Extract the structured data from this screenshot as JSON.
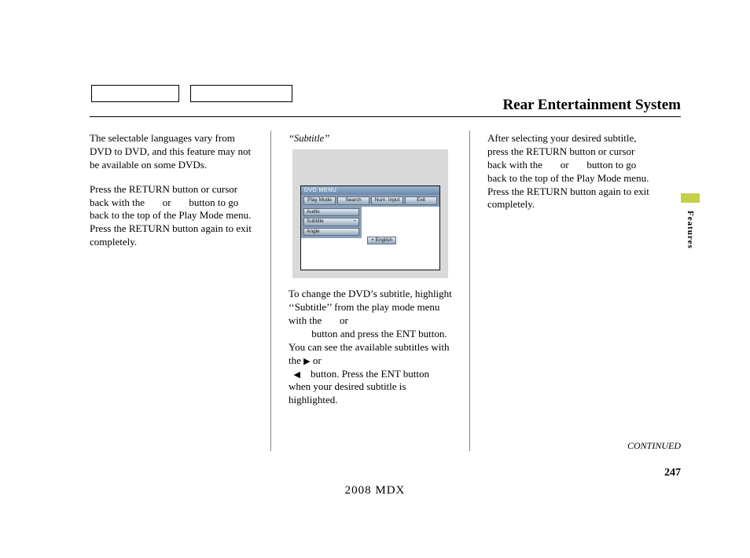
{
  "header": {
    "title": "Rear Entertainment System"
  },
  "col1": {
    "p1": "The selectable languages vary from DVD to DVD, and this feature may not be available on some DVDs.",
    "p2a": "Press the RETURN button or cursor back with the ",
    "p2b": " or ",
    "p2c": " button to go back to the top of the Play Mode menu. Press the RETURN button again to exit completely."
  },
  "col2": {
    "label": "‘‘Subtitle’’",
    "p1a": "To change the DVD’s subtitle, highlight ‘‘Subtitle’’ from the play mode menu with the ",
    "p1b": " or",
    "p1c": " button and press the ENT button. You can see the available subtitles with the ",
    "p1d": " or",
    "p1e": " button. Press the ENT button when your desired subtitle is highlighted.",
    "tri_right": "▶",
    "tri_left": "◀",
    "dvd": {
      "menu_label": "DVD MENU",
      "row1": [
        "Play Mode",
        "Search",
        "Num. Input",
        "Exit"
      ],
      "sideBtns": [
        "Audio",
        "Subtitle",
        "Angle"
      ],
      "sub_minus": "−",
      "sub_plus": "+",
      "sub_value": "English"
    }
  },
  "col3": {
    "p1a": "After selecting your desired subtitle, press the RETURN button or cursor back with the ",
    "p1b": " or ",
    "p1c": " button to go back to the top of the Play Mode menu. Press the RETURN button again to exit completely."
  },
  "side": {
    "label": "Features"
  },
  "footer": {
    "continued": "CONTINUED",
    "page": "247",
    "model": "2008  MDX"
  }
}
